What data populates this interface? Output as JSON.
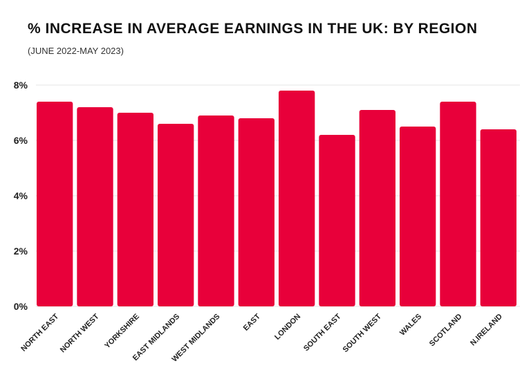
{
  "chart_data": {
    "type": "bar",
    "title": "% INCREASE IN AVERAGE EARNINGS IN THE UK: BY REGION",
    "subtitle": "(JUNE 2022-MAY 2023)",
    "xlabel": "",
    "ylabel": "",
    "categories": [
      "NORTH EAST",
      "NORTH WEST",
      "YORKSHIRE",
      "EAST MIDLANDS",
      "WEST MIDLANDS",
      "EAST",
      "LONDON",
      "SOUTH EAST",
      "SOUTH WEST",
      "WALES",
      "SCOTLAND",
      "N.IRELAND"
    ],
    "values": [
      7.4,
      7.2,
      7.0,
      6.6,
      6.9,
      6.8,
      7.8,
      6.2,
      7.1,
      6.5,
      7.4,
      6.4
    ],
    "ylim": [
      0,
      8
    ],
    "yticks": [
      0,
      2,
      4,
      6,
      8
    ],
    "ytick_labels": [
      "0%",
      "2%",
      "4%",
      "6%",
      "8%"
    ],
    "grid": true,
    "bar_color": "#e8003a"
  }
}
